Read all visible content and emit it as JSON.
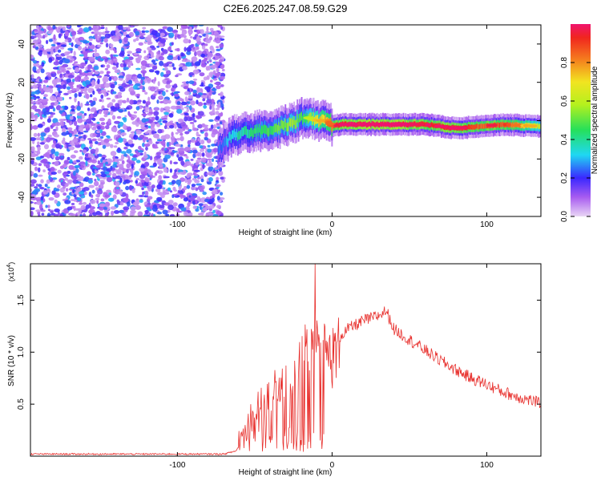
{
  "title": "C2E6.2025.247.08.59.G29",
  "chart_data": [
    {
      "type": "heatmap",
      "xlabel": "Height of straight line (km)",
      "ylabel": "Frequency (Hz)",
      "xlim": [
        -195,
        135
      ],
      "ylim": [
        -50,
        50
      ],
      "xticks": [
        -100,
        0,
        100
      ],
      "yticks": [
        -40,
        -20,
        0,
        20,
        40
      ],
      "colorbar": {
        "label": "Normalized spectral amplitude",
        "range": [
          0,
          1
        ],
        "ticks": [
          0.0,
          0.2,
          0.4,
          0.6,
          0.8
        ]
      },
      "noise_region": {
        "x_range": [
          -195,
          -70
        ],
        "amplitude_range": [
          0.05,
          0.3
        ]
      },
      "signal_track": {
        "x": [
          -74,
          -65,
          -55,
          -45,
          -35,
          -25,
          -18,
          -10,
          -3,
          0,
          5,
          20,
          40,
          60,
          80,
          95,
          110,
          135
        ],
        "frequency": [
          -15,
          -8,
          -6,
          -5,
          -4,
          -1,
          2,
          0,
          0,
          -3,
          -2,
          -2,
          -2,
          -2,
          -4,
          -3,
          -2,
          -3
        ],
        "amplitude": [
          0.22,
          0.35,
          0.4,
          0.45,
          0.5,
          0.55,
          0.45,
          0.7,
          0.75,
          0.85,
          0.95,
          1.0,
          1.0,
          0.9,
          0.95,
          0.85,
          0.9,
          0.6
        ]
      }
    },
    {
      "type": "line",
      "xlabel": "Height of straight line (km)",
      "ylabel": "SNR (10 * v/v)",
      "y_multiplier": "(x10",
      "y_multiplier_exp": "4",
      "y_multiplier_close": ")",
      "xlim": [
        -195,
        135
      ],
      "ylim": [
        0,
        1.85
      ],
      "xticks": [
        -100,
        0,
        100
      ],
      "yticks": [
        0.5,
        1.0,
        1.5
      ],
      "ytick_labels": [
        "0.5",
        "1.0",
        "1.5"
      ],
      "series": [
        {
          "color": "#e8322f",
          "x": [
            -195,
            -150,
            -100,
            -70,
            -62,
            -55,
            -45,
            -35,
            -25,
            -15,
            -7,
            -3,
            0,
            5,
            10,
            20,
            30,
            35,
            40,
            50,
            60,
            70,
            80,
            90,
            100,
            110,
            120,
            130,
            135
          ],
          "y": [
            0.02,
            0.02,
            0.02,
            0.02,
            0.05,
            0.35,
            0.5,
            0.65,
            0.8,
            1.0,
            1.1,
            1.08,
            1.05,
            1.15,
            1.22,
            1.3,
            1.35,
            1.4,
            1.22,
            1.12,
            1.02,
            0.92,
            0.83,
            0.75,
            0.69,
            0.62,
            0.57,
            0.53,
            0.5
          ]
        }
      ]
    }
  ]
}
